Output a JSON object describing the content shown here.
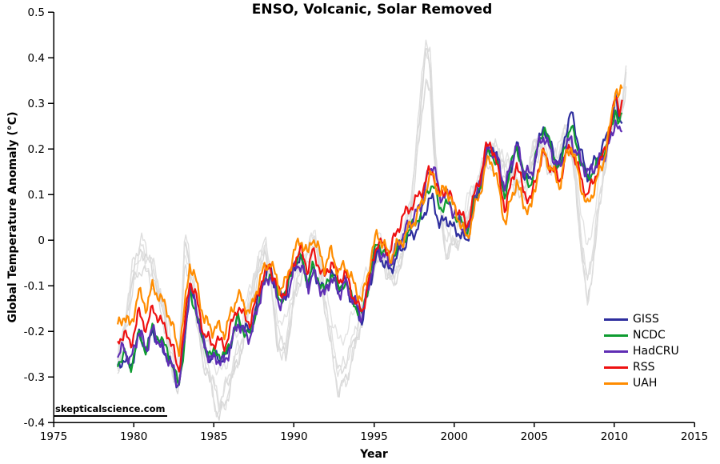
{
  "chart_data": {
    "type": "line",
    "title": "ENSO, Volcanic, Solar Removed",
    "xlabel": "Year",
    "ylabel": "Global Temperature Anomaly (°C)",
    "watermark": "skepticalscience.com",
    "xlim": [
      1975,
      2015
    ],
    "ylim": [
      -0.4,
      0.5
    ],
    "grid": false,
    "legend_position": "right-lower",
    "xticks": {
      "values": [
        1975,
        1980,
        1985,
        1990,
        1995,
        2000,
        2005,
        2010,
        2015
      ],
      "labels": [
        "1975",
        "1980",
        "1985",
        "1990",
        "1995",
        "2000",
        "2005",
        "2010",
        "2015"
      ]
    },
    "yticks": {
      "values": [
        0.5,
        0.4,
        0.3,
        0.2,
        0.1,
        0,
        -0.1,
        -0.2,
        -0.3,
        -0.4
      ],
      "labels": [
        "0.5",
        "0.4",
        "0.3",
        "0.2",
        "0.1",
        "0",
        "-0.1",
        "-0.2",
        "-0.3",
        "-0.4"
      ]
    },
    "x_start": 1979.0,
    "sample_step_years": 0.0833,
    "adjusted_base": {
      "x": [
        1979.0,
        1979.4,
        1979.8,
        1980.3,
        1980.8,
        1981.2,
        1981.7,
        1982.1,
        1982.5,
        1982.8,
        1983.1,
        1983.5,
        1983.9,
        1984.4,
        1984.9,
        1985.2,
        1985.7,
        1986.1,
        1986.5,
        1986.8,
        1987.3,
        1987.7,
        1988.0,
        1988.5,
        1989.1,
        1989.5,
        1990.0,
        1990.45,
        1990.9,
        1991.15,
        1991.5,
        1991.9,
        1992.35,
        1992.8,
        1993.2,
        1993.6,
        1994.0,
        1994.25,
        1994.55,
        1994.85,
        1995.2,
        1995.6,
        1996.0,
        1996.4,
        1996.8,
        1997.2,
        1997.6,
        1998.0,
        1998.4,
        1998.7,
        1999.1,
        1999.5,
        1999.9,
        2000.3,
        2000.8,
        2001.2,
        2001.6,
        2002.0,
        2002.3,
        2002.7,
        2003.2,
        2003.6,
        2003.9,
        2004.3,
        2004.8,
        2005.2,
        2005.6,
        2006.0,
        2006.6,
        2007.0,
        2007.3,
        2007.7,
        2008.3,
        2008.8,
        2009.3,
        2009.8,
        2010.1,
        2010.3,
        2010.55
      ],
      "y": [
        -0.245,
        -0.22,
        -0.25,
        -0.175,
        -0.21,
        -0.165,
        -0.2,
        -0.22,
        -0.26,
        -0.295,
        -0.22,
        -0.085,
        -0.13,
        -0.215,
        -0.24,
        -0.235,
        -0.245,
        -0.2,
        -0.155,
        -0.175,
        -0.19,
        -0.13,
        -0.095,
        -0.06,
        -0.125,
        -0.115,
        -0.05,
        -0.03,
        -0.075,
        -0.035,
        -0.06,
        -0.095,
        -0.055,
        -0.1,
        -0.08,
        -0.12,
        -0.15,
        -0.165,
        -0.115,
        -0.06,
        -0.01,
        -0.025,
        -0.045,
        -0.01,
        0.015,
        0.035,
        0.05,
        0.075,
        0.125,
        0.14,
        0.075,
        0.09,
        0.06,
        0.045,
        0.015,
        0.075,
        0.12,
        0.185,
        0.2,
        0.16,
        0.085,
        0.15,
        0.19,
        0.13,
        0.105,
        0.18,
        0.225,
        0.19,
        0.15,
        0.21,
        0.23,
        0.18,
        0.11,
        0.15,
        0.19,
        0.245,
        0.305,
        0.27,
        0.285
      ]
    },
    "offset_x": [
      1979.0,
      1980.3,
      1982.0,
      1983.5,
      1985.2,
      1987.0,
      1988.4,
      1990.1,
      1991.2,
      1992.8,
      1993.9,
      1995.2,
      1996.8,
      1998.0,
      1998.7,
      1999.5,
      2000.8,
      2002.3,
      2003.2,
      2003.9,
      2004.8,
      2005.6,
      2006.6,
      2007.3,
      2008.3,
      2009.3,
      2010.1,
      2010.55
    ],
    "series": [
      {
        "name": "GISS",
        "color": "#2e2e9e",
        "offset_y": [
          -0.04,
          -0.03,
          -0.035,
          -0.02,
          -0.02,
          -0.015,
          0.0,
          -0.005,
          -0.03,
          -0.01,
          -0.01,
          -0.02,
          -0.03,
          -0.03,
          -0.05,
          -0.04,
          -0.02,
          0.01,
          0.015,
          0.02,
          0.02,
          0.025,
          0.01,
          0.05,
          0.03,
          0.015,
          0.005,
          -0.015
        ],
        "jitter": {
          "a": 0.01,
          "f1": 9.3,
          "p1": 0.5,
          "f2": 23.7,
          "p2": 1.7
        }
      },
      {
        "name": "NCDC",
        "color": "#0e9c30",
        "offset_y": [
          -0.025,
          -0.035,
          -0.02,
          -0.03,
          -0.01,
          -0.02,
          -0.01,
          0.0,
          -0.025,
          -0.01,
          -0.005,
          0.005,
          -0.015,
          -0.01,
          -0.015,
          -0.005,
          0.005,
          -0.005,
          0.015,
          0.02,
          0.015,
          0.025,
          0.0,
          0.02,
          0.02,
          0.0,
          -0.015,
          -0.005
        ],
        "jitter": {
          "a": 0.009,
          "f1": 8.1,
          "p1": 2.1,
          "f2": 21.3,
          "p2": 0.4
        }
      },
      {
        "name": "HadCRU",
        "color": "#5f2db4",
        "offset_y": [
          -0.01,
          -0.025,
          -0.035,
          -0.015,
          -0.025,
          -0.025,
          -0.015,
          -0.015,
          -0.035,
          -0.02,
          0.0,
          -0.01,
          -0.005,
          0.01,
          0.03,
          0.01,
          -0.005,
          0.005,
          0.03,
          0.02,
          0.035,
          0.005,
          0.005,
          -0.01,
          0.035,
          -0.01,
          -0.035,
          -0.045
        ],
        "jitter": {
          "a": 0.011,
          "f1": 9.9,
          "p1": 4.2,
          "f2": 25.1,
          "p2": 2.9
        }
      },
      {
        "name": "RSS",
        "color": "#ee1111",
        "offset_y": [
          0.02,
          0.015,
          0.02,
          0.0,
          0.015,
          0.01,
          0.005,
          0.005,
          0.01,
          0.01,
          0.005,
          0.005,
          0.035,
          0.035,
          0.01,
          0.025,
          0.015,
          0.015,
          -0.02,
          -0.02,
          -0.02,
          -0.035,
          -0.02,
          -0.025,
          -0.015,
          -0.005,
          0.015,
          0.02
        ],
        "jitter": {
          "a": 0.01,
          "f1": 8.7,
          "p1": 1.2,
          "f2": 22.9,
          "p2": 5.0
        }
      },
      {
        "name": "UAH",
        "color": "#ff8c00",
        "offset_y": [
          0.055,
          0.06,
          0.07,
          0.035,
          0.045,
          0.035,
          0.015,
          0.025,
          0.045,
          0.025,
          0.035,
          0.025,
          -0.015,
          0.005,
          0.005,
          0.03,
          -0.015,
          -0.02,
          -0.05,
          -0.06,
          -0.04,
          -0.03,
          -0.03,
          -0.02,
          -0.04,
          -0.02,
          0.035,
          0.05
        ],
        "jitter": {
          "a": 0.011,
          "f1": 9.0,
          "p1": 3.4,
          "f2": 24.3,
          "p2": 0.9
        }
      }
    ],
    "trend": {
      "x": [
        1979.0,
        2010.8
      ],
      "y": [
        -0.25,
        0.22
      ]
    },
    "raw_base": {
      "x": [
        1979.0,
        1979.5,
        1980.0,
        1980.5,
        1981.0,
        1981.5,
        1982.0,
        1982.4,
        1982.8,
        1983.2,
        1983.8,
        1984.3,
        1984.8,
        1985.3,
        1985.8,
        1986.3,
        1986.8,
        1987.3,
        1987.8,
        1988.2,
        1988.6,
        1989.0,
        1989.5,
        1990.0,
        1990.5,
        1991.0,
        1991.3,
        1991.8,
        1992.3,
        1992.8,
        1993.3,
        1993.8,
        1994.3,
        1994.8,
        1995.3,
        1995.8,
        1996.3,
        1996.8,
        1997.3,
        1997.8,
        1998.2,
        1998.5,
        1999.0,
        1999.5,
        2000.0,
        2000.5,
        2001.0,
        2001.5,
        2002.0,
        2002.5,
        2003.0,
        2003.5,
        2004.0,
        2004.5,
        2005.0,
        2005.5,
        2006.0,
        2006.5,
        2007.0,
        2007.3,
        2007.8,
        2008.3,
        2008.8,
        2009.3,
        2009.8,
        2010.2,
        2010.45,
        2010.75
      ],
      "y": [
        -0.27,
        -0.18,
        -0.06,
        -0.02,
        -0.05,
        -0.1,
        -0.18,
        -0.28,
        -0.32,
        0.0,
        -0.12,
        -0.25,
        -0.3,
        -0.37,
        -0.33,
        -0.27,
        -0.22,
        -0.12,
        -0.06,
        -0.01,
        -0.1,
        -0.22,
        -0.24,
        -0.12,
        -0.06,
        -0.02,
        0.01,
        -0.1,
        -0.22,
        -0.31,
        -0.28,
        -0.22,
        -0.15,
        -0.08,
        -0.01,
        -0.06,
        -0.08,
        -0.02,
        0.08,
        0.25,
        0.41,
        0.37,
        0.1,
        -0.02,
        0.0,
        0.02,
        0.08,
        0.12,
        0.18,
        0.2,
        0.17,
        0.15,
        0.12,
        0.12,
        0.2,
        0.22,
        0.16,
        0.18,
        0.24,
        0.22,
        0.05,
        -0.12,
        0.0,
        0.15,
        0.25,
        0.31,
        0.27,
        0.38
      ]
    },
    "raw_series": [
      {
        "amp": 0.78,
        "offset": 0.025,
        "color": "#e3e3e3",
        "jitter": {
          "a": 0.012,
          "f1": 7.7,
          "p1": 0.9,
          "f2": 19.9,
          "p2": 2.2
        }
      },
      {
        "amp": 0.88,
        "offset": -0.015,
        "color": "#dadada",
        "jitter": {
          "a": 0.012,
          "f1": 8.9,
          "p1": 3.1,
          "f2": 22.1,
          "p2": 4.4
        }
      },
      {
        "amp": 0.97,
        "offset": 0.01,
        "color": "#e0e0e0",
        "jitter": {
          "a": 0.013,
          "f1": 9.5,
          "p1": 5.3,
          "f2": 24.7,
          "p2": 1.1
        }
      },
      {
        "amp": 1.05,
        "offset": -0.01,
        "color": "#d6d6d6",
        "jitter": {
          "a": 0.012,
          "f1": 8.3,
          "p1": 2.6,
          "f2": 21.1,
          "p2": 3.8
        }
      },
      {
        "amp": 1.1,
        "offset": 0.0,
        "color": "#dedede",
        "jitter": {
          "a": 0.013,
          "f1": 9.1,
          "p1": 4.7,
          "f2": 23.3,
          "p2": 0.6
        }
      }
    ]
  }
}
